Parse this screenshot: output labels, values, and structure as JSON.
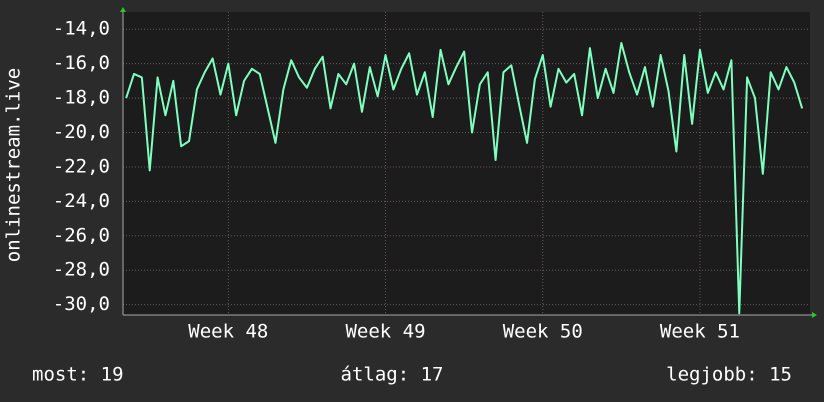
{
  "chart_data": {
    "type": "line",
    "y_label": "onlinestream.live",
    "x": [
      47.35,
      47.4,
      47.45,
      47.5,
      47.55,
      47.6,
      47.65,
      47.7,
      47.75,
      47.8,
      47.85,
      47.9,
      47.95,
      48.0,
      48.05,
      48.1,
      48.15,
      48.2,
      48.25,
      48.3,
      48.35,
      48.4,
      48.45,
      48.5,
      48.55,
      48.6,
      48.65,
      48.7,
      48.75,
      48.8,
      48.85,
      48.9,
      48.95,
      49.0,
      49.05,
      49.1,
      49.15,
      49.2,
      49.25,
      49.3,
      49.35,
      49.4,
      49.45,
      49.5,
      49.55,
      49.6,
      49.65,
      49.7,
      49.75,
      49.8,
      49.85,
      49.9,
      49.95,
      50.0,
      50.05,
      50.1,
      50.15,
      50.2,
      50.25,
      50.3,
      50.35,
      50.4,
      50.45,
      50.5,
      50.55,
      50.6,
      50.65,
      50.7,
      50.75,
      50.8,
      50.85,
      50.9,
      50.95,
      51.0,
      51.05,
      51.1,
      51.15,
      51.2,
      51.25,
      51.3,
      51.35,
      51.4,
      51.45,
      51.5,
      51.55,
      51.6,
      51.65
    ],
    "series": [
      {
        "name": "onlinestream.live",
        "color": "#7fffbf",
        "values": [
          -18,
          -16.6,
          -16.8,
          -22.2,
          -16.8,
          -19,
          -17,
          -20.8,
          -20.5,
          -17.5,
          -16.5,
          -15.7,
          -17.8,
          -16,
          -19,
          -17,
          -16.3,
          -16.6,
          -18.6,
          -20.6,
          -17.5,
          -15.8,
          -16.8,
          -17.4,
          -16.3,
          -15.6,
          -18.6,
          -16.6,
          -17.2,
          -16,
          -18.8,
          -16.2,
          -17.9,
          -15.5,
          -17.5,
          -16.3,
          -15.4,
          -17.8,
          -16.5,
          -19.1,
          -15.2,
          -17.2,
          -16.2,
          -15.3,
          -20,
          -17.2,
          -16.5,
          -21.6,
          -16.5,
          -16.1,
          -18.4,
          -20.6,
          -16.9,
          -15.5,
          -18.5,
          -16.3,
          -17.1,
          -16.6,
          -19,
          -15.1,
          -18,
          -16.3,
          -17.7,
          -14.8,
          -16.5,
          -17.8,
          -16.2,
          -18.5,
          -15.5,
          -17.6,
          -21.1,
          -15.5,
          -19.5,
          -15.2,
          -17.7,
          -16.5,
          -17.5,
          -15.8,
          -30.5,
          -16.8,
          -18,
          -22.4,
          -16.5,
          -17.5,
          -16.2,
          -17.1,
          -18.6
        ]
      }
    ],
    "xlim": [
      47.33,
      51.7
    ],
    "xticks": [
      {
        "value": 48,
        "label": "Week 48"
      },
      {
        "value": 49,
        "label": "Week 49"
      },
      {
        "value": 50,
        "label": "Week 50"
      },
      {
        "value": 51,
        "label": "Week 51"
      }
    ],
    "ylim": [
      -30.6,
      -13.0
    ],
    "yticks": [
      {
        "value": -30,
        "label": "-30,0"
      },
      {
        "value": -28,
        "label": "-28,0"
      },
      {
        "value": -26,
        "label": "-26,0"
      },
      {
        "value": -24,
        "label": "-24,0"
      },
      {
        "value": -22,
        "label": "-22,0"
      },
      {
        "value": -20,
        "label": "-20,0"
      },
      {
        "value": -18,
        "label": "-18,0"
      },
      {
        "value": -16,
        "label": "-16,0"
      },
      {
        "value": -14,
        "label": "-14,0"
      }
    ],
    "grid": true,
    "stats": [
      "most: 19",
      "átlag: 17",
      "legjobb: 15"
    ]
  }
}
